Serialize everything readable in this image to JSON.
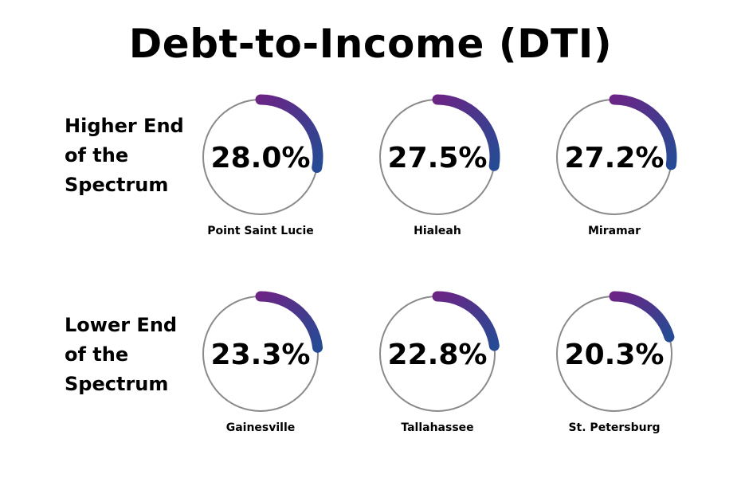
{
  "title": "Debt-to-Income (DTI)",
  "rows": {
    "high_label": "Higher End of the Spectrum",
    "low_label": "Lower End of the Spectrum"
  },
  "colors": {
    "ring": "#8a8a8a",
    "arc_start": "#6a2585",
    "arc_end": "#264b94",
    "text": "#000000"
  },
  "chart_data": {
    "type": "radial-progress",
    "unit": "%",
    "max": 100,
    "groups": [
      {
        "label": "Higher End of the Spectrum",
        "items": [
          {
            "city": "Point Saint Lucie",
            "value": 28.0,
            "display": "28.0%"
          },
          {
            "city": "Hialeah",
            "value": 27.5,
            "display": "27.5%"
          },
          {
            "city": "Miramar",
            "value": 27.2,
            "display": "27.2%"
          }
        ]
      },
      {
        "label": "Lower End of the Spectrum",
        "items": [
          {
            "city": "Gainesville",
            "value": 23.3,
            "display": "23.3%"
          },
          {
            "city": "Tallahassee",
            "value": 22.8,
            "display": "22.8%"
          },
          {
            "city": "St. Petersburg",
            "value": 20.3,
            "display": "20.3%"
          }
        ]
      }
    ]
  }
}
